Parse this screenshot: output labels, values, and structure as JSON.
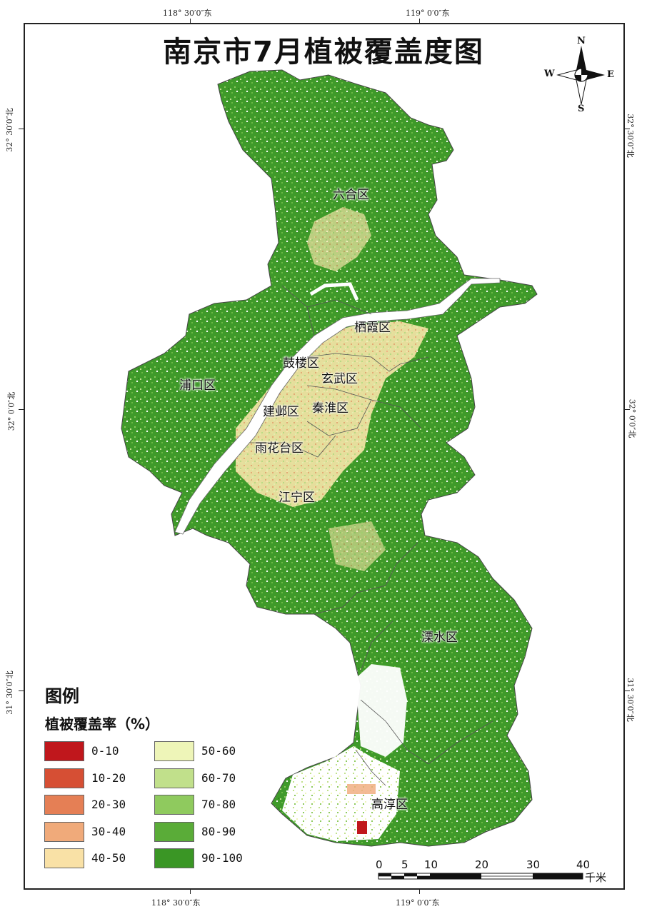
{
  "map": {
    "title": "南京市7月植被覆盖度图",
    "coords": {
      "top_left": "118° 30′0″东",
      "top_right": "119° 0′0″东",
      "bottom_left": "118° 30′0″东",
      "bottom_right": "119° 0′0″东",
      "left_upper": "32° 30′0″北",
      "left_middle": "32° 0′0″北",
      "left_lower": "31° 30′0″北",
      "right_upper": "32° 30′0″北",
      "right_middle": "32° 0′0″北",
      "right_lower": "31° 30′0″北"
    },
    "districts": [
      "六合区",
      "栖霞区",
      "鼓楼区",
      "玄武区",
      "浦口区",
      "建邺区",
      "秦淮区",
      "雨花台区",
      "江宁区",
      "溧水区",
      "高淳区"
    ],
    "compass": {
      "n": "N",
      "s": "S",
      "e": "E",
      "w": "W"
    }
  },
  "legend": {
    "title": "图例",
    "subtitle": "植被覆盖率（%）",
    "items": [
      {
        "label": "0-10",
        "color": "#c0171c"
      },
      {
        "label": "10-20",
        "color": "#d64f34"
      },
      {
        "label": "20-30",
        "color": "#e57f55"
      },
      {
        "label": "30-40",
        "color": "#f0aa7a"
      },
      {
        "label": "40-50",
        "color": "#f9e1a6"
      },
      {
        "label": "50-60",
        "color": "#eef5b8"
      },
      {
        "label": "60-70",
        "color": "#c1e08b"
      },
      {
        "label": "70-80",
        "color": "#8fca5e"
      },
      {
        "label": "80-90",
        "color": "#5aac38"
      },
      {
        "label": "90-100",
        "color": "#3a9625"
      }
    ]
  },
  "scale": {
    "labels": [
      "0",
      "5",
      "10",
      "20",
      "30",
      "40"
    ],
    "unit": "千米"
  }
}
